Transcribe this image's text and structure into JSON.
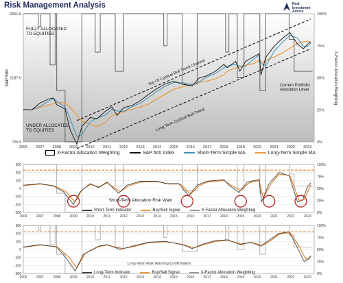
{
  "header": {
    "title": "Risk Management Analysis",
    "logo_line1": "Real",
    "logo_line2": "Investment",
    "logo_line3": "Advice"
  },
  "colors": {
    "sp500": "#111111",
    "short_ma": "#3b8fb3",
    "long_ma": "#e89a3c",
    "allocation": "#555555",
    "signal": "#e07b20",
    "circle": "#b22222",
    "channel": "#111111"
  },
  "chart_data": [
    {
      "type": "line",
      "id": "main",
      "ylabel": "S&P 500",
      "y2label": "X-Factor Allocation Weighting",
      "y_ticks": [
        "6561.0",
        "2187.0",
        "729.9"
      ],
      "y2_ticks": [
        "100%",
        "75%",
        "50%",
        "25%",
        "0%"
      ],
      "x_ticks": [
        "2006",
        "2007",
        "2008",
        "2009",
        "2010",
        "2011",
        "2012",
        "2013",
        "2014",
        "2015",
        "2016",
        "2017",
        "2018",
        "2019",
        "2020",
        "2021",
        "2022",
        "2023"
      ],
      "annotations": {
        "fully": "FULLY ALLOCATED\nTO EQUITIES",
        "under": "UNDER ALLOCATED\nTO EQUITIES",
        "top_channel": "Top Of Cyclical Bull Trend Channel",
        "long_trend": "Long Term Cyclical Bull Trend",
        "current": "Current Portfolio\nAllocation Level"
      },
      "legend": [
        "X-Factor Allocation Weighting",
        "S&P 500 Index",
        "Short-Term Simple MA",
        "Long-Term Simple MA"
      ],
      "sp500": [
        [
          2006.0,
          1270
        ],
        [
          2006.5,
          1260
        ],
        [
          2007.0,
          1420
        ],
        [
          2007.5,
          1520
        ],
        [
          2007.8,
          1550
        ],
        [
          2008.0,
          1380
        ],
        [
          2008.5,
          1280
        ],
        [
          2008.8,
          900
        ],
        [
          2009.2,
          700
        ],
        [
          2009.5,
          950
        ],
        [
          2010.0,
          1110
        ],
        [
          2010.4,
          1080
        ],
        [
          2010.9,
          1230
        ],
        [
          2011.3,
          1330
        ],
        [
          2011.6,
          1150
        ],
        [
          2012.0,
          1310
        ],
        [
          2012.5,
          1360
        ],
        [
          2013.0,
          1480
        ],
        [
          2013.5,
          1650
        ],
        [
          2014.0,
          1820
        ],
        [
          2014.5,
          1970
        ],
        [
          2015.0,
          2060
        ],
        [
          2015.6,
          1950
        ],
        [
          2016.1,
          1900
        ],
        [
          2016.5,
          2170
        ],
        [
          2017.0,
          2270
        ],
        [
          2017.5,
          2450
        ],
        [
          2018.0,
          2750
        ],
        [
          2018.2,
          2600
        ],
        [
          2018.7,
          2900
        ],
        [
          2018.95,
          2450
        ],
        [
          2019.3,
          2900
        ],
        [
          2019.8,
          3150
        ],
        [
          2020.1,
          3300
        ],
        [
          2020.22,
          2300
        ],
        [
          2020.5,
          3100
        ],
        [
          2021.0,
          3750
        ],
        [
          2021.5,
          4300
        ],
        [
          2021.95,
          4750
        ],
        [
          2022.4,
          3900
        ],
        [
          2022.75,
          3600
        ],
        [
          2023.0,
          3900
        ],
        [
          2023.2,
          4050
        ]
      ],
      "allocation": [
        [
          2006.0,
          100
        ],
        [
          2006.9,
          100
        ],
        [
          2006.9,
          90
        ],
        [
          2007.05,
          90
        ],
        [
          2007.05,
          100
        ],
        [
          2007.6,
          100
        ],
        [
          2007.6,
          60
        ],
        [
          2007.9,
          60
        ],
        [
          2007.9,
          100
        ],
        [
          2008.0,
          100
        ],
        [
          2008.0,
          40
        ],
        [
          2008.5,
          40
        ],
        [
          2008.5,
          0
        ],
        [
          2009.5,
          0
        ],
        [
          2009.5,
          100
        ],
        [
          2010.3,
          100
        ],
        [
          2010.3,
          70
        ],
        [
          2010.6,
          70
        ],
        [
          2010.6,
          100
        ],
        [
          2011.5,
          100
        ],
        [
          2011.5,
          55
        ],
        [
          2012.0,
          55
        ],
        [
          2012.0,
          100
        ],
        [
          2014.4,
          100
        ],
        [
          2014.4,
          75
        ],
        [
          2014.6,
          75
        ],
        [
          2014.6,
          100
        ],
        [
          2015.5,
          100
        ],
        [
          2015.5,
          45
        ],
        [
          2016.4,
          45
        ],
        [
          2016.4,
          100
        ],
        [
          2018.1,
          100
        ],
        [
          2018.1,
          70
        ],
        [
          2018.3,
          70
        ],
        [
          2018.3,
          100
        ],
        [
          2018.8,
          100
        ],
        [
          2018.8,
          50
        ],
        [
          2019.2,
          50
        ],
        [
          2019.2,
          100
        ],
        [
          2020.15,
          100
        ],
        [
          2020.15,
          40
        ],
        [
          2020.5,
          40
        ],
        [
          2020.5,
          100
        ],
        [
          2021.9,
          100
        ],
        [
          2021.9,
          80
        ],
        [
          2022.2,
          80
        ],
        [
          2022.2,
          55
        ],
        [
          2023.3,
          55
        ]
      ],
      "channel": {
        "upper": [
          [
            2009.2,
            1050
          ],
          [
            2023.2,
            6000
          ]
        ],
        "lower": [
          [
            2009.2,
            650
          ],
          [
            2023.2,
            3600
          ]
        ]
      }
    },
    {
      "type": "line",
      "id": "short_term",
      "y_ticks": [
        "300",
        "200",
        "100",
        "0",
        "-100",
        "-200",
        "-300"
      ],
      "y2_ticks": [
        "100%",
        "75%",
        "50%",
        "25%",
        "0%"
      ],
      "x_ticks": [
        "2006",
        "2007",
        "2008",
        "2009",
        "2010",
        "2011",
        "2012",
        "2013",
        "2014",
        "2015",
        "2016",
        "2017",
        "2018",
        "2019",
        "2020",
        "2021",
        "2022",
        "2023"
      ],
      "caption": "Short-Term Allocation Risk Wain",
      "legend": [
        "Short-Term Indicator",
        "Buy/Sell Signal",
        "X-Factor Allocation Weighting"
      ],
      "signal_level": 230,
      "circles": [
        2009.0,
        2012.0,
        2015.8,
        2019.0,
        2020.7,
        2022.6
      ],
      "indicator": [
        [
          2006,
          40
        ],
        [
          2007,
          60
        ],
        [
          2007.8,
          30
        ],
        [
          2008.4,
          -40
        ],
        [
          2009.0,
          -200
        ],
        [
          2009.4,
          -40
        ],
        [
          2010,
          60
        ],
        [
          2010.5,
          10
        ],
        [
          2011,
          80
        ],
        [
          2011.7,
          -60
        ],
        [
          2012.2,
          40
        ],
        [
          2013,
          90
        ],
        [
          2014,
          90
        ],
        [
          2014.6,
          60
        ],
        [
          2015.3,
          60
        ],
        [
          2015.9,
          -90
        ],
        [
          2016.4,
          40
        ],
        [
          2017,
          90
        ],
        [
          2018,
          110
        ],
        [
          2018.3,
          40
        ],
        [
          2018.9,
          -50
        ],
        [
          2019.4,
          80
        ],
        [
          2020.1,
          110
        ],
        [
          2020.25,
          -170
        ],
        [
          2020.7,
          60
        ],
        [
          2021.3,
          200
        ],
        [
          2021.9,
          160
        ],
        [
          2022.4,
          -170
        ],
        [
          2022.7,
          -150
        ],
        [
          2023.0,
          20
        ],
        [
          2023.2,
          70
        ]
      ],
      "signal": [
        [
          2006,
          35
        ],
        [
          2007,
          55
        ],
        [
          2007.8,
          35
        ],
        [
          2008.5,
          -30
        ],
        [
          2009.1,
          -170
        ],
        [
          2009.5,
          -20
        ],
        [
          2010,
          50
        ],
        [
          2010.6,
          20
        ],
        [
          2011,
          70
        ],
        [
          2011.8,
          -40
        ],
        [
          2012.3,
          30
        ],
        [
          2013,
          80
        ],
        [
          2014,
          85
        ],
        [
          2014.7,
          55
        ],
        [
          2015.4,
          55
        ],
        [
          2016.0,
          -70
        ],
        [
          2016.5,
          30
        ],
        [
          2017,
          80
        ],
        [
          2018,
          100
        ],
        [
          2018.4,
          45
        ],
        [
          2019.0,
          -30
        ],
        [
          2019.5,
          70
        ],
        [
          2020.1,
          100
        ],
        [
          2020.35,
          -120
        ],
        [
          2020.8,
          50
        ],
        [
          2021.3,
          180
        ],
        [
          2021.95,
          160
        ],
        [
          2022.5,
          -150
        ],
        [
          2022.8,
          -140
        ],
        [
          2023.1,
          0
        ],
        [
          2023.2,
          40
        ]
      ],
      "allocation": [
        [
          2006,
          100
        ],
        [
          2008.0,
          100
        ],
        [
          2008.0,
          40
        ],
        [
          2008.5,
          40
        ],
        [
          2008.5,
          0
        ],
        [
          2009.5,
          0
        ],
        [
          2009.5,
          100
        ],
        [
          2011.5,
          100
        ],
        [
          2011.5,
          55
        ],
        [
          2012.0,
          55
        ],
        [
          2012.0,
          100
        ],
        [
          2015.5,
          100
        ],
        [
          2015.5,
          45
        ],
        [
          2016.4,
          45
        ],
        [
          2016.4,
          100
        ],
        [
          2018.8,
          100
        ],
        [
          2018.8,
          50
        ],
        [
          2019.2,
          50
        ],
        [
          2019.2,
          100
        ],
        [
          2020.15,
          100
        ],
        [
          2020.15,
          40
        ],
        [
          2020.5,
          40
        ],
        [
          2020.5,
          100
        ],
        [
          2021.9,
          100
        ],
        [
          2021.9,
          80
        ],
        [
          2022.2,
          80
        ],
        [
          2022.2,
          55
        ],
        [
          2023.3,
          55
        ]
      ]
    },
    {
      "type": "line",
      "id": "long_term",
      "y_ticks": [
        "300",
        "200",
        "100",
        "0",
        "-100",
        "-200",
        "-300"
      ],
      "y2_ticks": [
        "100%",
        "75%",
        "50%",
        "25%",
        "0%"
      ],
      "x_ticks": [
        "2006",
        "2007",
        "2008",
        "2009",
        "2010",
        "2011",
        "2012",
        "2013",
        "2014",
        "2015",
        "2016",
        "2017",
        "2018",
        "2019",
        "2020",
        "2021",
        "2022",
        "2023"
      ],
      "caption": "Long-Term Risk Warning Confirmation",
      "legend": [
        "Long-Term Indicator",
        "Buy/Sell Signal",
        "X-Factor Allocation Weighting"
      ],
      "signal_level": 220,
      "indicator": [
        [
          2006,
          30
        ],
        [
          2007,
          60
        ],
        [
          2008,
          30
        ],
        [
          2008.6,
          -120
        ],
        [
          2009.1,
          -270
        ],
        [
          2009.6,
          -60
        ],
        [
          2010.5,
          40
        ],
        [
          2011,
          60
        ],
        [
          2011.8,
          0
        ],
        [
          2012.5,
          40
        ],
        [
          2013.5,
          90
        ],
        [
          2014.5,
          100
        ],
        [
          2015.5,
          60
        ],
        [
          2016.1,
          10
        ],
        [
          2016.8,
          70
        ],
        [
          2017.5,
          110
        ],
        [
          2018.2,
          120
        ],
        [
          2019.0,
          60
        ],
        [
          2019.6,
          90
        ],
        [
          2020.2,
          40
        ],
        [
          2020.6,
          100
        ],
        [
          2021.3,
          200
        ],
        [
          2021.9,
          220
        ],
        [
          2022.4,
          20
        ],
        [
          2022.8,
          -150
        ],
        [
          2023.0,
          -130
        ],
        [
          2023.2,
          -80
        ]
      ],
      "signal": [
        [
          2006,
          25
        ],
        [
          2007,
          55
        ],
        [
          2008,
          35
        ],
        [
          2008.7,
          -90
        ],
        [
          2009.2,
          -230
        ],
        [
          2009.7,
          -50
        ],
        [
          2010.5,
          35
        ],
        [
          2011,
          55
        ],
        [
          2011.9,
          10
        ],
        [
          2012.6,
          35
        ],
        [
          2013.5,
          85
        ],
        [
          2014.5,
          95
        ],
        [
          2015.5,
          65
        ],
        [
          2016.2,
          20
        ],
        [
          2016.9,
          65
        ],
        [
          2017.5,
          100
        ],
        [
          2018.2,
          115
        ],
        [
          2019.0,
          70
        ],
        [
          2019.7,
          85
        ],
        [
          2020.3,
          50
        ],
        [
          2020.7,
          95
        ],
        [
          2021.3,
          190
        ],
        [
          2021.95,
          210
        ],
        [
          2022.5,
          40
        ],
        [
          2022.9,
          -120
        ],
        [
          2023.1,
          -110
        ],
        [
          2023.2,
          -90
        ]
      ],
      "allocation": [
        [
          2006,
          100
        ],
        [
          2006.9,
          100
        ],
        [
          2006.9,
          90
        ],
        [
          2007.05,
          90
        ],
        [
          2007.05,
          100
        ],
        [
          2007.6,
          100
        ],
        [
          2007.6,
          60
        ],
        [
          2007.9,
          60
        ],
        [
          2007.9,
          100
        ],
        [
          2008.0,
          100
        ],
        [
          2008.0,
          40
        ],
        [
          2008.5,
          40
        ],
        [
          2008.5,
          0
        ],
        [
          2009.5,
          0
        ],
        [
          2009.5,
          100
        ],
        [
          2010.3,
          100
        ],
        [
          2010.3,
          70
        ],
        [
          2010.6,
          70
        ],
        [
          2010.6,
          100
        ],
        [
          2011.5,
          100
        ],
        [
          2011.5,
          55
        ],
        [
          2012.0,
          55
        ],
        [
          2012.0,
          100
        ],
        [
          2014.4,
          100
        ],
        [
          2014.4,
          75
        ],
        [
          2014.6,
          75
        ],
        [
          2014.6,
          100
        ],
        [
          2015.5,
          100
        ],
        [
          2015.5,
          45
        ],
        [
          2016.4,
          45
        ],
        [
          2016.4,
          100
        ],
        [
          2018.1,
          100
        ],
        [
          2018.1,
          70
        ],
        [
          2018.3,
          70
        ],
        [
          2018.3,
          100
        ],
        [
          2018.8,
          100
        ],
        [
          2018.8,
          50
        ],
        [
          2019.2,
          50
        ],
        [
          2019.2,
          100
        ],
        [
          2020.15,
          100
        ],
        [
          2020.15,
          40
        ],
        [
          2020.5,
          40
        ],
        [
          2020.5,
          100
        ],
        [
          2021.9,
          100
        ],
        [
          2021.9,
          80
        ],
        [
          2022.2,
          80
        ],
        [
          2022.2,
          55
        ],
        [
          2023.3,
          55
        ]
      ]
    }
  ]
}
